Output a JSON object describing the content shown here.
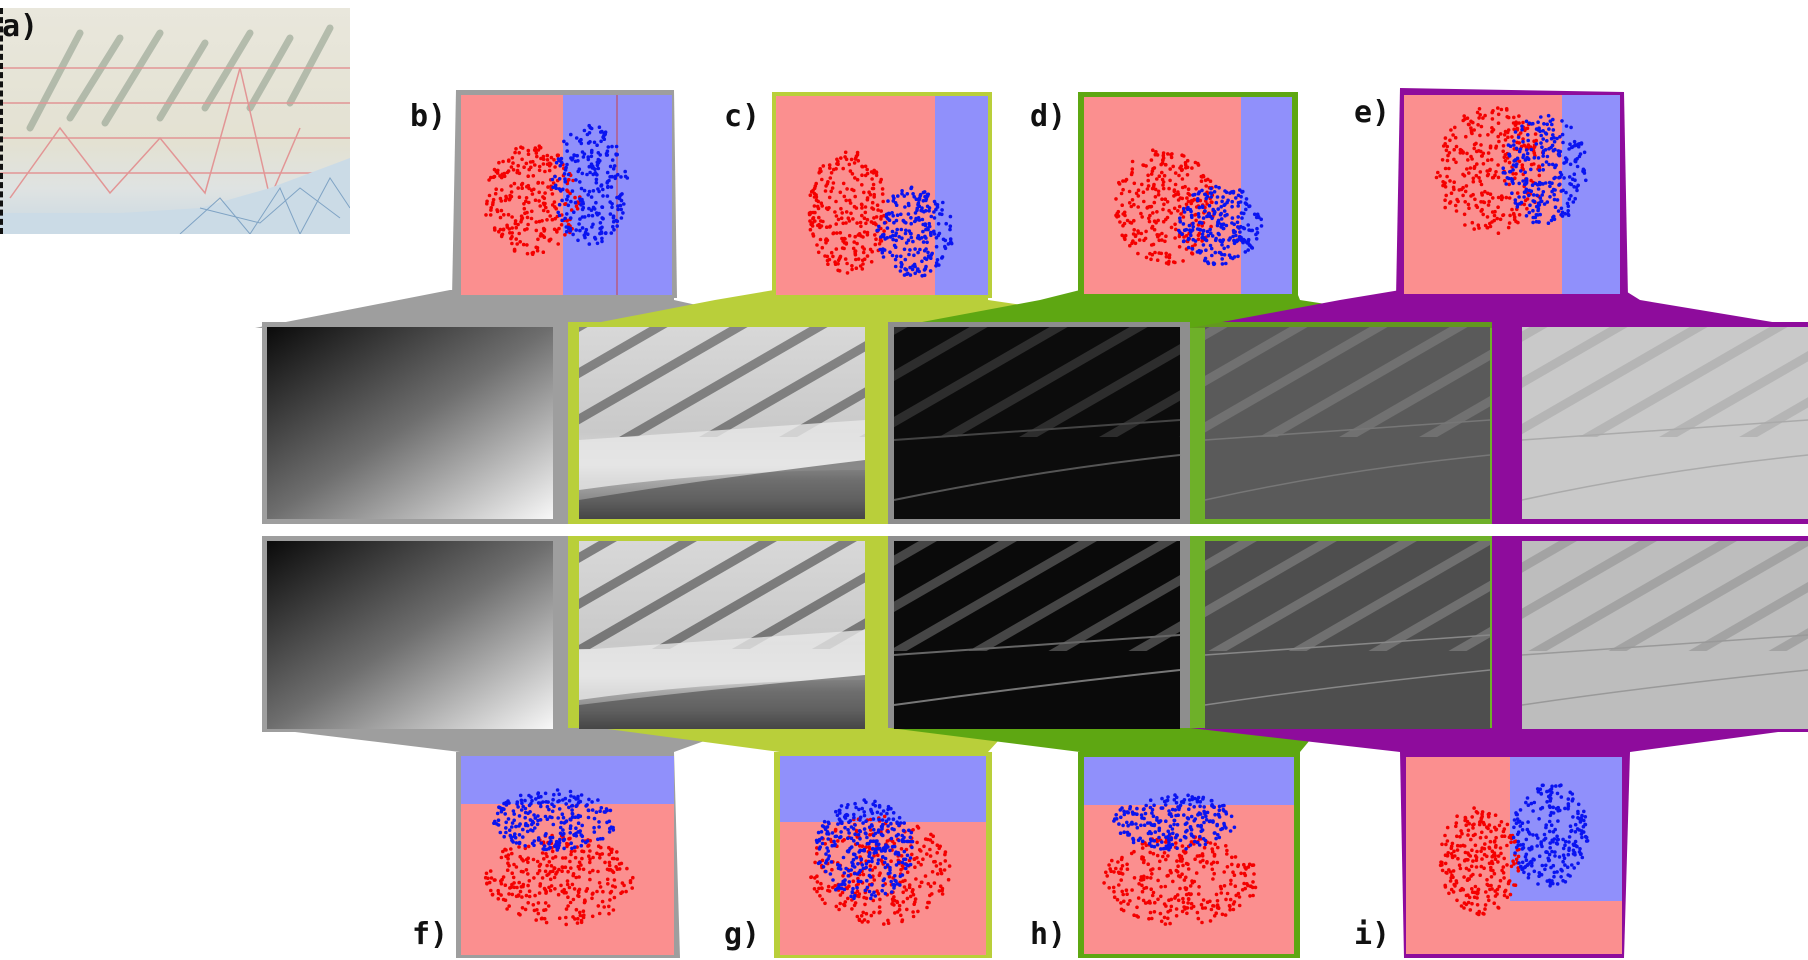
{
  "labels": {
    "a": "a)",
    "b": "b)",
    "c": "c)",
    "d": "d)",
    "e": "e)",
    "f": "f)",
    "g": "g)",
    "h": "h)",
    "i": "i)"
  },
  "colors": {
    "gray": "#9e9e9e",
    "yellowgreen": "#b9cf3a",
    "green": "#5ea712",
    "purple": "#8e0c9c",
    "region_red": "#fb8f8f",
    "region_blue": "#9090fb",
    "points_red": "#f40000",
    "points_blue": "#0a14f0"
  },
  "rows": [
    {
      "name": "gray",
      "images": [
        "gradient",
        "intensity",
        "edges-dark",
        "edges-mid",
        "edges-light"
      ]
    },
    {
      "name": "yellowgreen",
      "images": [
        "gradient",
        "intensity",
        "edges-dark",
        "edges-mid",
        "edges-light"
      ]
    }
  ]
}
